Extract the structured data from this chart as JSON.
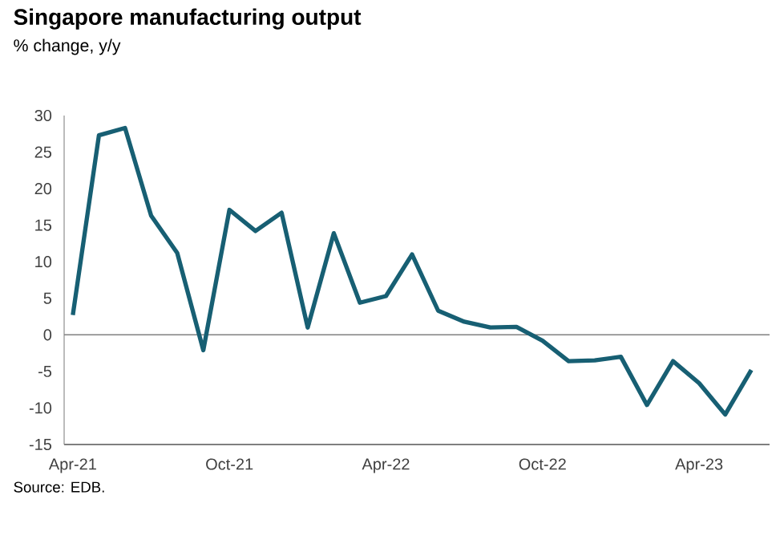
{
  "chart_data": {
    "type": "line",
    "title": "Singapore manufacturing output",
    "subtitle": "% change, y/y",
    "annotations": [
      "Source: EDB."
    ],
    "x": [
      "2021-04",
      "2021-05",
      "2021-06",
      "2021-07",
      "2021-08",
      "2021-09",
      "2021-10",
      "2021-11",
      "2021-12",
      "2022-01",
      "2022-02",
      "2022-03",
      "2022-04",
      "2022-05",
      "2022-06",
      "2022-07",
      "2022-08",
      "2022-09",
      "2022-10",
      "2022-11",
      "2022-12",
      "2023-01",
      "2023-02",
      "2023-03",
      "2023-04",
      "2023-05",
      "2023-06"
    ],
    "series": [
      {
        "color": "#175f73",
        "values": [
          2.7,
          27.3,
          28.3,
          16.3,
          11.2,
          -2.1,
          17.1,
          14.2,
          16.7,
          1.0,
          13.9,
          4.4,
          5.3,
          11.0,
          3.3,
          1.8,
          1.0,
          1.1,
          -0.8,
          -3.6,
          -3.5,
          -3.0,
          -9.6,
          -3.6,
          -6.6,
          -10.9,
          -4.8
        ]
      }
    ],
    "xlim": [
      "2021-03-21",
      "2023-06-22"
    ],
    "xticks": [
      {
        "value": "2021-04",
        "label": "Apr-21"
      },
      {
        "value": "2021-10",
        "label": "Oct-21"
      },
      {
        "value": "2022-04",
        "label": "Apr-22"
      },
      {
        "value": "2022-10",
        "label": "Oct-22"
      },
      {
        "value": "2023-04",
        "label": "Apr-23"
      }
    ],
    "ylim": [
      -15,
      30
    ],
    "yticks": [
      -15,
      -10,
      -5,
      0,
      5,
      10,
      15,
      20,
      25,
      30
    ]
  }
}
